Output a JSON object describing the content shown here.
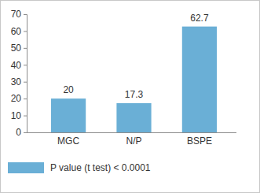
{
  "chart_data": {
    "type": "bar",
    "categories": [
      "MGC",
      "N/P",
      "BSPE"
    ],
    "series": [
      {
        "name": "P value (t test) < 0.0001",
        "color": "#6aafd6",
        "values": [
          20,
          17.3,
          62.7
        ]
      }
    ],
    "ylim": [
      0,
      70
    ],
    "yticks": [
      0,
      10,
      20,
      30,
      40,
      50,
      60,
      70
    ],
    "grid": false,
    "data_labels": true,
    "legend": "bottom"
  }
}
